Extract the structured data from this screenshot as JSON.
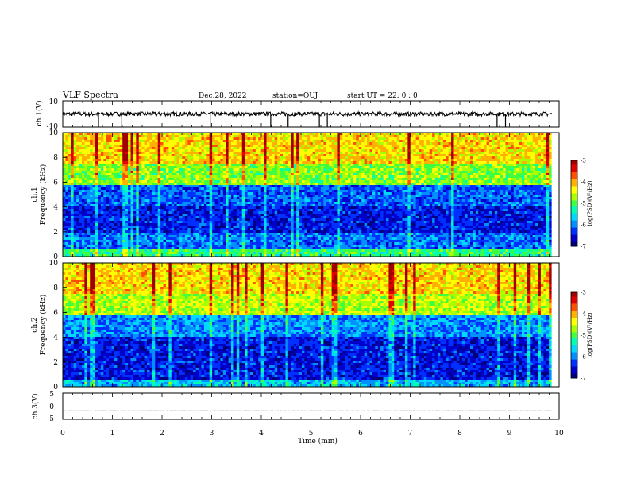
{
  "header": {
    "title": "VLF Spectra",
    "date": "Dec.28, 2022",
    "station": "station=OUJ",
    "start": "start  UT  =   22: 0  : 0"
  },
  "colors": {
    "colormap": [
      "#00007a",
      "#0000c8",
      "#0030ff",
      "#0090ff",
      "#00d8ff",
      "#00ffb0",
      "#40ff40",
      "#a8ff00",
      "#ffff00",
      "#ffb000",
      "#ff5000",
      "#e00000",
      "#a00000"
    ],
    "line": "#000000"
  },
  "chart_data": [
    {
      "type": "line",
      "panel": "ch1-waveform",
      "ylabel": "ch.1(V)",
      "ylim": [
        -10,
        10
      ],
      "yticklabels": [
        "10",
        "-10"
      ],
      "baseline": 0,
      "spikes_min": [
        0.72,
        1.19,
        2.97,
        4.19,
        4.54,
        5.17,
        5.33,
        8.75,
        8.92
      ]
    },
    {
      "type": "heatmap",
      "panel": "ch1-spectrogram",
      "ylabel": "Frequency (kHz)",
      "ylabel2": "ch.1",
      "ylim": [
        0,
        10
      ],
      "yticklabels": [
        "0",
        "2",
        "4",
        "6",
        "8",
        "10"
      ],
      "colorbar": {
        "label": "log(PSD)(V²/Hz)",
        "range": [
          -7,
          -3
        ],
        "ticks": [
          "-3",
          "-4",
          "-5",
          "-6",
          "-7"
        ]
      },
      "bands_khz": [
        {
          "from": 0,
          "to": 0.5,
          "level": 0.45
        },
        {
          "from": 0.5,
          "to": 2,
          "level": 0.22
        },
        {
          "from": 2,
          "to": 4,
          "level": 0.12
        },
        {
          "from": 4,
          "to": 5.8,
          "level": 0.2
        },
        {
          "from": 5.8,
          "to": 7.5,
          "level": 0.55
        },
        {
          "from": 7.5,
          "to": 10,
          "level": 0.7
        }
      ]
    },
    {
      "type": "heatmap",
      "panel": "ch2-spectrogram",
      "ylabel": "Frequency (kHz)",
      "ylabel2": "ch.2",
      "ylim": [
        0,
        10
      ],
      "yticklabels": [
        "0",
        "2",
        "4",
        "6",
        "8",
        "10"
      ],
      "colorbar": {
        "label": "log(PSD)(V²/Hz)",
        "range": [
          -7,
          -3
        ],
        "ticks": [
          "-3",
          "-4",
          "-5",
          "-6",
          "-7"
        ]
      },
      "bands_khz": [
        {
          "from": 0,
          "to": 0.5,
          "level": 0.3
        },
        {
          "from": 0.5,
          "to": 2,
          "level": 0.12
        },
        {
          "from": 2,
          "to": 4,
          "level": 0.12
        },
        {
          "from": 4,
          "to": 5.8,
          "level": 0.25
        },
        {
          "from": 5.8,
          "to": 7.5,
          "level": 0.6
        },
        {
          "from": 7.5,
          "to": 10,
          "level": 0.7
        }
      ]
    },
    {
      "type": "line",
      "panel": "ch3-waveform",
      "ylabel": "ch.3(V)",
      "ylim": [
        -5,
        5
      ],
      "yticklabels": [
        "5",
        "0",
        "-5"
      ],
      "baseline": -1.8
    }
  ],
  "xaxis": {
    "label": "Time (min)",
    "range": [
      0,
      10
    ],
    "ticklabels": [
      "0",
      "1",
      "2",
      "3",
      "4",
      "5",
      "6",
      "7",
      "8",
      "9",
      "10"
    ],
    "data_end": 9.85
  }
}
